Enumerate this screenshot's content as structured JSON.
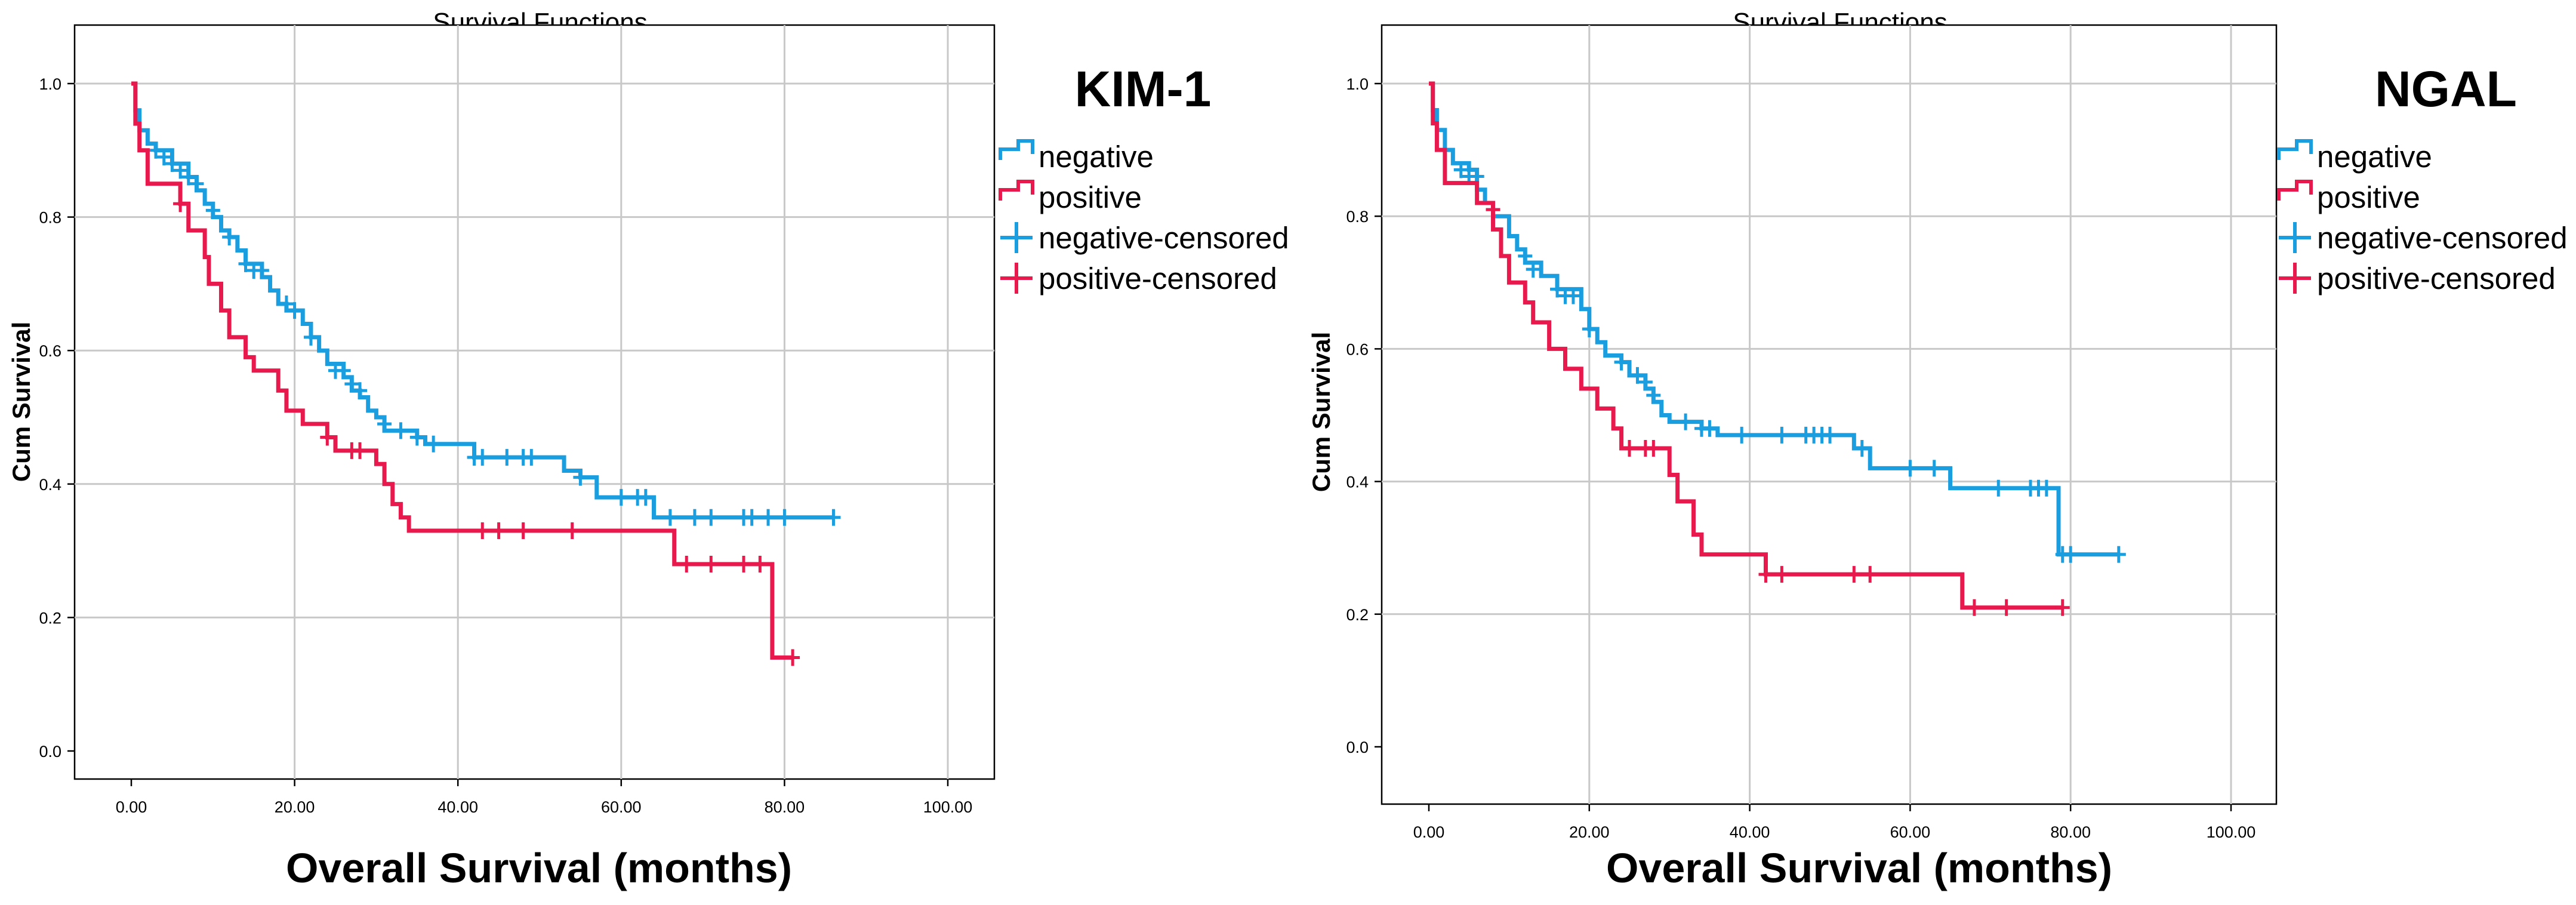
{
  "chart_data": [
    {
      "type": "line",
      "title": "Survival Functions",
      "panel_label": "KIM-1",
      "xlabel": "Overall Survival (months)",
      "ylabel": "Cum Survival",
      "xlim": [
        0,
        100
      ],
      "ylim": [
        0,
        1
      ],
      "x_ticks": [
        "0.00",
        "20.00",
        "40.00",
        "60.00",
        "80.00",
        "100.00"
      ],
      "y_ticks": [
        "0.0",
        "0.2",
        "0.4",
        "0.6",
        "0.8",
        "1.0"
      ],
      "grid": true,
      "legend_position": "top-right outside plot",
      "legend": [
        "negative",
        "positive",
        "negative-censored",
        "positive-censored"
      ],
      "colors": {
        "negative": "#1a9ee0",
        "positive": "#e8194c"
      },
      "series": [
        {
          "name": "negative",
          "step_points": [
            [
              0,
              1.0
            ],
            [
              0.5,
              0.96
            ],
            [
              1,
              0.93
            ],
            [
              2,
              0.91
            ],
            [
              3,
              0.9
            ],
            [
              5,
              0.88
            ],
            [
              7,
              0.86
            ],
            [
              8,
              0.84
            ],
            [
              9,
              0.82
            ],
            [
              10,
              0.8
            ],
            [
              11,
              0.78
            ],
            [
              12,
              0.77
            ],
            [
              13,
              0.75
            ],
            [
              14,
              0.73
            ],
            [
              16,
              0.71
            ],
            [
              17,
              0.69
            ],
            [
              18,
              0.67
            ],
            [
              19,
              0.66
            ],
            [
              21,
              0.64
            ],
            [
              22,
              0.62
            ],
            [
              23,
              0.6
            ],
            [
              24,
              0.58
            ],
            [
              26,
              0.56
            ],
            [
              27,
              0.54
            ],
            [
              28,
              0.53
            ],
            [
              29,
              0.51
            ],
            [
              30,
              0.5
            ],
            [
              31,
              0.48
            ],
            [
              35,
              0.47
            ],
            [
              36,
              0.46
            ],
            [
              42,
              0.44
            ],
            [
              52,
              0.44
            ],
            [
              53,
              0.42
            ],
            [
              55,
              0.41
            ],
            [
              57,
              0.38
            ],
            [
              63,
              0.38
            ],
            [
              64,
              0.35
            ],
            [
              86,
              0.35
            ]
          ],
          "censored": [
            [
              3,
              0.9
            ],
            [
              4,
              0.89
            ],
            [
              5,
              0.88
            ],
            [
              6,
              0.87
            ],
            [
              7,
              0.86
            ],
            [
              8,
              0.85
            ],
            [
              10,
              0.81
            ],
            [
              12,
              0.77
            ],
            [
              14,
              0.73
            ],
            [
              15,
              0.72
            ],
            [
              16,
              0.72
            ],
            [
              19,
              0.67
            ],
            [
              20,
              0.66
            ],
            [
              22,
              0.62
            ],
            [
              25,
              0.57
            ],
            [
              26,
              0.57
            ],
            [
              27,
              0.55
            ],
            [
              28,
              0.54
            ],
            [
              31,
              0.49
            ],
            [
              33,
              0.48
            ],
            [
              35,
              0.47
            ],
            [
              37,
              0.46
            ],
            [
              42,
              0.44
            ],
            [
              43,
              0.44
            ],
            [
              46,
              0.44
            ],
            [
              48,
              0.44
            ],
            [
              49,
              0.44
            ],
            [
              55,
              0.41
            ],
            [
              60,
              0.38
            ],
            [
              62,
              0.38
            ],
            [
              63,
              0.38
            ],
            [
              66,
              0.35
            ],
            [
              69,
              0.35
            ],
            [
              71,
              0.35
            ],
            [
              75,
              0.35
            ],
            [
              76,
              0.35
            ],
            [
              78,
              0.35
            ],
            [
              80,
              0.35
            ],
            [
              86,
              0.35
            ]
          ]
        },
        {
          "name": "positive",
          "step_points": [
            [
              0,
              1.0
            ],
            [
              0.5,
              0.94
            ],
            [
              1,
              0.9
            ],
            [
              2,
              0.85
            ],
            [
              6,
              0.82
            ],
            [
              7,
              0.78
            ],
            [
              9,
              0.74
            ],
            [
              9.5,
              0.7
            ],
            [
              11,
              0.66
            ],
            [
              12,
              0.62
            ],
            [
              14,
              0.59
            ],
            [
              15,
              0.57
            ],
            [
              18,
              0.54
            ],
            [
              19,
              0.51
            ],
            [
              21,
              0.49
            ],
            [
              24,
              0.47
            ],
            [
              25,
              0.45
            ],
            [
              30,
              0.43
            ],
            [
              31,
              0.4
            ],
            [
              32,
              0.37
            ],
            [
              33,
              0.35
            ],
            [
              34,
              0.33
            ],
            [
              66,
              0.33
            ],
            [
              66.5,
              0.28
            ],
            [
              78,
              0.28
            ],
            [
              78.5,
              0.14
            ],
            [
              81,
              0.14
            ]
          ],
          "censored": [
            [
              6,
              0.82
            ],
            [
              24,
              0.47
            ],
            [
              27,
              0.45
            ],
            [
              28,
              0.45
            ],
            [
              43,
              0.33
            ],
            [
              45,
              0.33
            ],
            [
              48,
              0.33
            ],
            [
              54,
              0.33
            ],
            [
              68,
              0.28
            ],
            [
              71,
              0.28
            ],
            [
              75,
              0.28
            ],
            [
              77,
              0.28
            ],
            [
              81,
              0.14
            ]
          ]
        }
      ]
    },
    {
      "type": "line",
      "title": "Survival Functions",
      "panel_label": "NGAL",
      "xlabel": "Overall Survival (months)",
      "ylabel": "Cum Survival",
      "xlim": [
        0,
        100
      ],
      "ylim": [
        0,
        1
      ],
      "x_ticks": [
        "0.00",
        "20.00",
        "40.00",
        "60.00",
        "80.00",
        "100.00"
      ],
      "y_ticks": [
        "0.0",
        "0.2",
        "0.4",
        "0.6",
        "0.8",
        "1.0"
      ],
      "grid": true,
      "legend_position": "top-right outside plot",
      "legend": [
        "negative",
        "positive",
        "negative-censored",
        "positive-censored"
      ],
      "colors": {
        "negative": "#1a9ee0",
        "positive": "#e8194c"
      },
      "series": [
        {
          "name": "negative",
          "step_points": [
            [
              0,
              1.0
            ],
            [
              0.5,
              0.96
            ],
            [
              1,
              0.93
            ],
            [
              2,
              0.9
            ],
            [
              3,
              0.88
            ],
            [
              5,
              0.87
            ],
            [
              6,
              0.84
            ],
            [
              7,
              0.82
            ],
            [
              8,
              0.8
            ],
            [
              10,
              0.77
            ],
            [
              11,
              0.75
            ],
            [
              12,
              0.73
            ],
            [
              14,
              0.71
            ],
            [
              16,
              0.69
            ],
            [
              19,
              0.66
            ],
            [
              20,
              0.63
            ],
            [
              21,
              0.61
            ],
            [
              22,
              0.59
            ],
            [
              24,
              0.58
            ],
            [
              25,
              0.56
            ],
            [
              27,
              0.54
            ],
            [
              28,
              0.52
            ],
            [
              29,
              0.5
            ],
            [
              30,
              0.49
            ],
            [
              34,
              0.48
            ],
            [
              36,
              0.47
            ],
            [
              52,
              0.47
            ],
            [
              53,
              0.45
            ],
            [
              55,
              0.42
            ],
            [
              64,
              0.42
            ],
            [
              65,
              0.39
            ],
            [
              78,
              0.39
            ],
            [
              78.5,
              0.29
            ],
            [
              86,
              0.29
            ]
          ],
          "censored": [
            [
              4,
              0.87
            ],
            [
              5,
              0.86
            ],
            [
              6,
              0.86
            ],
            [
              8,
              0.81
            ],
            [
              12,
              0.74
            ],
            [
              13,
              0.72
            ],
            [
              16,
              0.69
            ],
            [
              17,
              0.68
            ],
            [
              18,
              0.68
            ],
            [
              20,
              0.63
            ],
            [
              24,
              0.58
            ],
            [
              26,
              0.56
            ],
            [
              27,
              0.55
            ],
            [
              28,
              0.53
            ],
            [
              32,
              0.49
            ],
            [
              34,
              0.48
            ],
            [
              35,
              0.48
            ],
            [
              39,
              0.47
            ],
            [
              44,
              0.47
            ],
            [
              47,
              0.47
            ],
            [
              48,
              0.47
            ],
            [
              49,
              0.47
            ],
            [
              50,
              0.47
            ],
            [
              54,
              0.45
            ],
            [
              60,
              0.42
            ],
            [
              63,
              0.42
            ],
            [
              71,
              0.39
            ],
            [
              75,
              0.39
            ],
            [
              76,
              0.39
            ],
            [
              77,
              0.39
            ],
            [
              79,
              0.29
            ],
            [
              80,
              0.29
            ],
            [
              86,
              0.29
            ]
          ]
        },
        {
          "name": "positive",
          "step_points": [
            [
              0,
              1.0
            ],
            [
              0.5,
              0.94
            ],
            [
              1,
              0.9
            ],
            [
              2,
              0.85
            ],
            [
              6,
              0.82
            ],
            [
              8,
              0.78
            ],
            [
              9,
              0.74
            ],
            [
              10,
              0.7
            ],
            [
              12,
              0.67
            ],
            [
              13,
              0.64
            ],
            [
              15,
              0.6
            ],
            [
              17,
              0.57
            ],
            [
              19,
              0.54
            ],
            [
              21,
              0.51
            ],
            [
              23,
              0.48
            ],
            [
              24,
              0.45
            ],
            [
              30,
              0.41
            ],
            [
              31,
              0.37
            ],
            [
              33,
              0.32
            ],
            [
              34,
              0.29
            ],
            [
              41,
              0.29
            ],
            [
              42,
              0.26
            ],
            [
              66,
              0.26
            ],
            [
              66.5,
              0.21
            ],
            [
              79,
              0.21
            ]
          ],
          "censored": [
            [
              8,
              0.81
            ],
            [
              25,
              0.45
            ],
            [
              27,
              0.45
            ],
            [
              28,
              0.45
            ],
            [
              42,
              0.26
            ],
            [
              44,
              0.26
            ],
            [
              53,
              0.26
            ],
            [
              55,
              0.26
            ],
            [
              68,
              0.21
            ],
            [
              72,
              0.21
            ],
            [
              79,
              0.21
            ]
          ]
        }
      ]
    }
  ]
}
